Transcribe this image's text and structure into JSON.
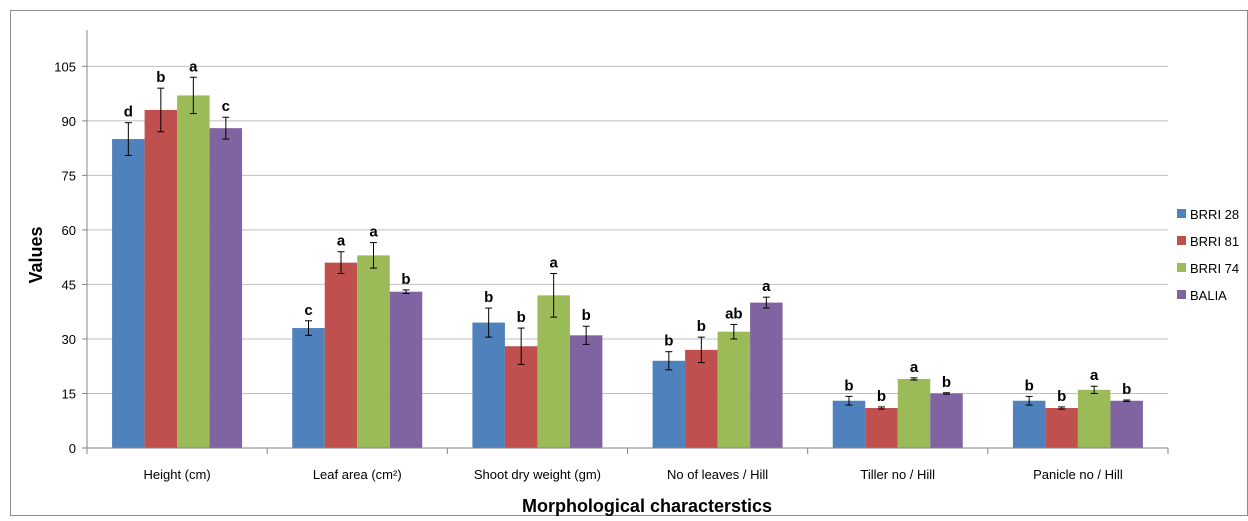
{
  "chart_data": {
    "type": "bar",
    "title": "",
    "xlabel": "Morphological characterstics",
    "ylabel": "Values",
    "ylim": [
      0,
      115
    ],
    "yticks": [
      0,
      15,
      30,
      45,
      60,
      75,
      90,
      105
    ],
    "grid": true,
    "legend_position": "right",
    "categories": [
      "Height (cm)",
      "Leaf area (cm²)",
      "Shoot dry weight (gm)",
      "No of leaves / Hill",
      "Tiller no / Hill",
      "Panicle no / Hill"
    ],
    "series": [
      {
        "name": "BRRI 28",
        "color": "#4F81BD",
        "values": [
          85,
          33,
          34.5,
          24,
          13,
          13
        ],
        "errors": [
          4.5,
          2,
          4,
          2.5,
          1.2,
          1.2
        ],
        "letters": [
          "d",
          "c",
          "b",
          "b",
          "b",
          "b"
        ]
      },
      {
        "name": "BRRI 81",
        "color": "#C0504D",
        "values": [
          93,
          51,
          28,
          27,
          11,
          11
        ],
        "errors": [
          6,
          3,
          5,
          3.5,
          0.3,
          0.3
        ],
        "letters": [
          "b",
          "a",
          "b",
          "b",
          "b",
          "b"
        ]
      },
      {
        "name": "BRRI 74",
        "color": "#9BBB59",
        "values": [
          97,
          53,
          42,
          32,
          19,
          16
        ],
        "errors": [
          5,
          3.5,
          6,
          2,
          0.3,
          1
        ],
        "letters": [
          "a",
          "a",
          "a",
          "ab",
          "a",
          "a"
        ]
      },
      {
        "name": "BALIA",
        "color": "#8064A2",
        "values": [
          88,
          43,
          31,
          40,
          15,
          13
        ],
        "errors": [
          3,
          0.5,
          2.5,
          1.5,
          0.2,
          0.2
        ],
        "letters": [
          "c",
          "b",
          "b",
          "a",
          "b",
          "b"
        ]
      }
    ]
  }
}
